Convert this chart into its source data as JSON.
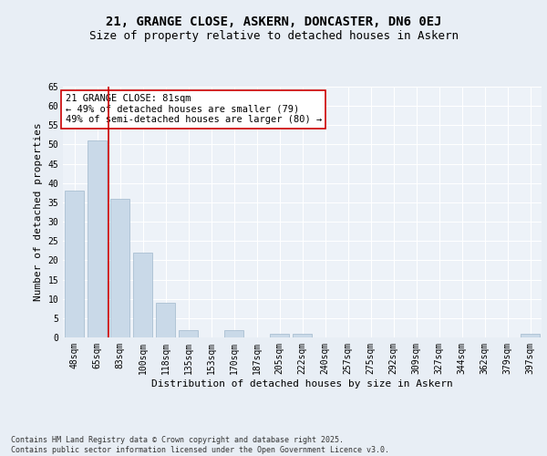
{
  "title1": "21, GRANGE CLOSE, ASKERN, DONCASTER, DN6 0EJ",
  "title2": "Size of property relative to detached houses in Askern",
  "xlabel": "Distribution of detached houses by size in Askern",
  "ylabel": "Number of detached properties",
  "categories": [
    "48sqm",
    "65sqm",
    "83sqm",
    "100sqm",
    "118sqm",
    "135sqm",
    "153sqm",
    "170sqm",
    "187sqm",
    "205sqm",
    "222sqm",
    "240sqm",
    "257sqm",
    "275sqm",
    "292sqm",
    "309sqm",
    "327sqm",
    "344sqm",
    "362sqm",
    "379sqm",
    "397sqm"
  ],
  "values": [
    38,
    51,
    36,
    22,
    9,
    2,
    0,
    2,
    0,
    1,
    1,
    0,
    0,
    0,
    0,
    0,
    0,
    0,
    0,
    0,
    1
  ],
  "bar_color": "#c9d9e8",
  "bar_edge_color": "#a0b8cc",
  "vline_x": 1.5,
  "vline_color": "#cc0000",
  "annotation_text": "21 GRANGE CLOSE: 81sqm\n← 49% of detached houses are smaller (79)\n49% of semi-detached houses are larger (80) →",
  "annotation_box_color": "white",
  "annotation_box_edge_color": "#cc0000",
  "ylim": [
    0,
    65
  ],
  "yticks": [
    0,
    5,
    10,
    15,
    20,
    25,
    30,
    35,
    40,
    45,
    50,
    55,
    60,
    65
  ],
  "footer_text": "Contains HM Land Registry data © Crown copyright and database right 2025.\nContains public sector information licensed under the Open Government Licence v3.0.",
  "bg_color": "#e8eef5",
  "plot_bg_color": "#edf2f8",
  "grid_color": "white",
  "title_fontsize": 10,
  "subtitle_fontsize": 9,
  "tick_fontsize": 7,
  "ylabel_fontsize": 8,
  "xlabel_fontsize": 8,
  "annot_fontsize": 7.5
}
